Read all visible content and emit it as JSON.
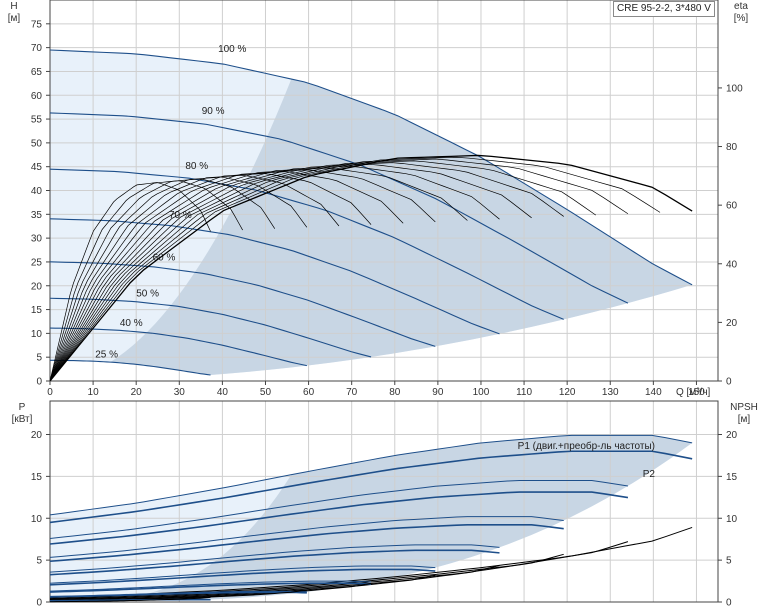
{
  "model": "CRE 95-2-2, 3*480 V",
  "colors": {
    "region_dark": "#c8d6e4",
    "region_light": "#e8f1fa",
    "pump_curve": "#1e4f8a",
    "eta_curve": "#000000",
    "npsh_curve": "#000000",
    "grid": "#cfcfcf",
    "axis": "#444444"
  },
  "chart_data": [
    {
      "id": "head",
      "type": "line",
      "y_left_label": [
        "H",
        "[м]"
      ],
      "y_right_label": [
        "eta",
        "[%]"
      ],
      "x_label": "Q [м³/ч]",
      "xlim": [
        0,
        155
      ],
      "ylim": [
        0,
        80
      ],
      "y2lim": [
        0,
        130
      ],
      "x_ticks": [
        0,
        10,
        20,
        30,
        40,
        50,
        60,
        70,
        80,
        90,
        100,
        110,
        120,
        130,
        140,
        150
      ],
      "x_tick_labels": [
        "0",
        "10",
        "20",
        "30",
        "40",
        "50",
        "60",
        "70",
        "80",
        "90",
        "100",
        "110",
        "120",
        "130",
        "140",
        "150"
      ],
      "y_ticks": [
        0,
        5,
        10,
        15,
        20,
        25,
        30,
        35,
        40,
        45,
        50,
        55,
        60,
        65,
        70,
        75
      ],
      "y_tick_labels": [
        "0",
        "5",
        "10",
        "15",
        "20",
        "25",
        "30",
        "35",
        "40",
        "45",
        "50",
        "55",
        "60",
        "65",
        "70",
        "75"
      ],
      "y2_ticks": [
        0,
        20,
        40,
        60,
        80,
        100
      ],
      "y2_tick_labels": [
        "0",
        "20",
        "40",
        "60",
        "80",
        "100"
      ],
      "grid": true,
      "speed_curves": [
        {
          "label": "100 %",
          "s": 1.0
        },
        {
          "label": "90 %",
          "s": 0.9
        },
        {
          "label": "80 %",
          "s": 0.8
        },
        {
          "label": "70 %",
          "s": 0.7
        },
        {
          "label": "60 %",
          "s": 0.6
        },
        {
          "label": "50 %",
          "s": 0.5
        },
        {
          "label": "40 %",
          "s": 0.4
        },
        {
          "label": "25 %",
          "s": 0.25
        }
      ],
      "head_curve_100": {
        "x": [
          0,
          20,
          40,
          60,
          80,
          100,
          120,
          140,
          149
        ],
        "y": [
          69.5,
          68.7,
          66.6,
          62.6,
          56.0,
          47.0,
          36.0,
          24.5,
          20.2
        ]
      },
      "eta_curve_100": {
        "x": [
          0,
          20,
          40,
          60,
          80,
          100,
          120,
          140,
          149
        ],
        "y": [
          0,
          36,
          58,
          70,
          76,
          77,
          74,
          66,
          58
        ]
      },
      "region_split_x_100": 56
    },
    {
      "id": "power",
      "type": "line",
      "y_left_label": [
        "P",
        "[кВт]"
      ],
      "y_right_label": [
        "NPSH",
        "[м]"
      ],
      "xlim": [
        0,
        155
      ],
      "ylim": [
        0,
        24
      ],
      "y2lim": [
        0,
        24
      ],
      "y_ticks": [
        0,
        5,
        10,
        15,
        20
      ],
      "y_tick_labels": [
        "0",
        "5",
        "10",
        "15",
        "20"
      ],
      "y2_ticks": [
        0,
        5,
        10,
        15,
        20
      ],
      "y2_tick_labels": [
        "0",
        "5",
        "10",
        "15",
        "20"
      ],
      "grid": true,
      "series_labels": [
        "P1 (двиг.+преобр-ль частоты)",
        "P2"
      ],
      "p1_curve_100": {
        "x": [
          0,
          20,
          40,
          60,
          80,
          100,
          120,
          140,
          149
        ],
        "y": [
          10.4,
          11.8,
          13.6,
          15.6,
          17.5,
          19.0,
          19.9,
          19.9,
          19.0
        ]
      },
      "p2_curve_100": {
        "x": [
          0,
          20,
          40,
          60,
          80,
          100,
          120,
          140,
          149
        ],
        "y": [
          9.5,
          10.8,
          12.4,
          14.2,
          15.9,
          17.2,
          18.0,
          18.0,
          17.1
        ]
      },
      "npsh_curve_100": {
        "x": [
          0,
          20,
          40,
          60,
          80,
          100,
          120,
          140,
          149
        ],
        "y": [
          0.5,
          0.9,
          1.4,
          2.1,
          3.0,
          4.1,
          5.4,
          7.3,
          8.9
        ]
      }
    }
  ]
}
